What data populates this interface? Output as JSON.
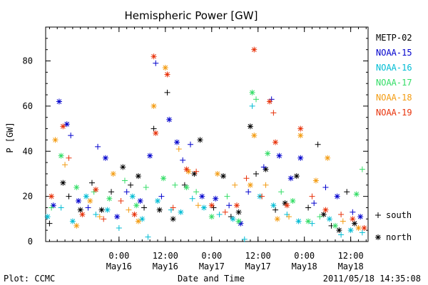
{
  "chart_data": {
    "type": "scatter",
    "title": "Hemispheric Power [GW]",
    "xlabel": "Date and Time",
    "ylabel": "P [GW]",
    "ylim": [
      0,
      95
    ],
    "yticks": [
      0,
      20,
      40,
      60,
      80
    ],
    "xlim": [
      "2011-05-15T05:00",
      "2011-05-18T16:30"
    ],
    "xticks": [
      {
        "t": "2011-05-16T00:00",
        "time": "0:00",
        "date": "May16"
      },
      {
        "t": "2011-05-16T12:00",
        "time": "12:00",
        "date": "May16"
      },
      {
        "t": "2011-05-17T00:00",
        "time": "0:00",
        "date": "May17"
      },
      {
        "t": "2011-05-17T12:00",
        "time": "12:00",
        "date": "May17"
      },
      {
        "t": "2011-05-18T00:00",
        "time": "0:00",
        "date": "May18"
      },
      {
        "t": "2011-05-18T12:00",
        "time": "12:00",
        "date": "May18"
      }
    ],
    "legend_placement": "right",
    "symbols": [
      {
        "symbol": "+",
        "label": "south"
      },
      {
        "symbol": "*",
        "label": "north"
      }
    ],
    "series": [
      {
        "name": "METP-02",
        "color": "#000000",
        "points": [
          [
            "2011-05-15T06:00",
            8,
            "+"
          ],
          [
            "2011-05-15T09:30",
            26,
            "*"
          ],
          [
            "2011-05-15T11:00",
            20,
            "+"
          ],
          [
            "2011-05-15T14:00",
            14,
            "*"
          ],
          [
            "2011-05-15T17:00",
            26,
            "+"
          ],
          [
            "2011-05-15T19:30",
            14,
            "*"
          ],
          [
            "2011-05-15T22:00",
            22,
            "+"
          ],
          [
            "2011-05-16T01:00",
            33,
            "*"
          ],
          [
            "2011-05-16T03:00",
            25,
            "+"
          ],
          [
            "2011-05-16T05:00",
            29,
            "*"
          ],
          [
            "2011-05-16T06:30",
            15,
            "+"
          ],
          [
            "2011-05-16T09:00",
            50,
            "+"
          ],
          [
            "2011-05-16T10:30",
            14,
            "*"
          ],
          [
            "2011-05-16T12:30",
            66,
            "+"
          ],
          [
            "2011-05-16T14:00",
            10,
            "*"
          ],
          [
            "2011-05-16T17:00",
            25,
            "+"
          ],
          [
            "2011-05-16T19:30",
            30,
            "*"
          ],
          [
            "2011-05-16T21:00",
            45,
            "*"
          ],
          [
            "2011-05-17T00:30",
            15,
            "+"
          ],
          [
            "2011-05-17T03:00",
            29,
            "*"
          ],
          [
            "2011-05-17T05:00",
            11,
            "+"
          ],
          [
            "2011-05-17T07:00",
            13,
            "*"
          ],
          [
            "2011-05-17T10:00",
            51,
            "*"
          ],
          [
            "2011-05-17T11:30",
            30,
            "+"
          ],
          [
            "2011-05-17T14:00",
            32,
            "*"
          ],
          [
            "2011-05-17T16:30",
            14,
            "+"
          ],
          [
            "2011-05-17T19:00",
            17,
            "*"
          ],
          [
            "2011-05-17T22:00",
            29,
            "*"
          ],
          [
            "2011-05-18T01:00",
            15,
            "+"
          ],
          [
            "2011-05-18T03:30",
            43,
            "+"
          ],
          [
            "2011-05-18T05:00",
            12,
            "*"
          ],
          [
            "2011-05-18T07:00",
            7,
            "+"
          ],
          [
            "2011-05-18T09:00",
            5,
            "*"
          ],
          [
            "2011-05-18T11:00",
            22,
            "+"
          ],
          [
            "2011-05-18T13:00",
            8,
            "*"
          ]
        ]
      },
      {
        "name": "NOAA-15",
        "color": "#0000cd",
        "points": [
          [
            "2011-05-15T07:00",
            16,
            "*"
          ],
          [
            "2011-05-15T08:30",
            62,
            "*"
          ],
          [
            "2011-05-15T10:30",
            52,
            "*"
          ],
          [
            "2011-05-15T11:30",
            47,
            "+"
          ],
          [
            "2011-05-15T13:30",
            18,
            "*"
          ],
          [
            "2011-05-15T16:00",
            15,
            "+"
          ],
          [
            "2011-05-15T18:30",
            42,
            "+"
          ],
          [
            "2011-05-15T20:30",
            37,
            "*"
          ],
          [
            "2011-05-15T23:30",
            11,
            "*"
          ],
          [
            "2011-05-16T02:00",
            22,
            "+"
          ],
          [
            "2011-05-16T05:30",
            18,
            "*"
          ],
          [
            "2011-05-16T08:00",
            38,
            "*"
          ],
          [
            "2011-05-16T09:30",
            79,
            "+"
          ],
          [
            "2011-05-16T11:00",
            20,
            "+"
          ],
          [
            "2011-05-16T13:00",
            54,
            "*"
          ],
          [
            "2011-05-16T15:00",
            44,
            "*"
          ],
          [
            "2011-05-16T16:30",
            36,
            "+"
          ],
          [
            "2011-05-16T18:30",
            43,
            "+"
          ],
          [
            "2011-05-16T21:30",
            20,
            "*"
          ],
          [
            "2011-05-17T01:00",
            19,
            "*"
          ],
          [
            "2011-05-17T04:30",
            16,
            "+"
          ],
          [
            "2011-05-17T07:30",
            8,
            "*"
          ],
          [
            "2011-05-17T09:30",
            22,
            "+"
          ],
          [
            "2011-05-17T13:30",
            33,
            "+"
          ],
          [
            "2011-05-17T15:30",
            63,
            "+"
          ],
          [
            "2011-05-17T17:30",
            38,
            "*"
          ],
          [
            "2011-05-17T20:30",
            28,
            "*"
          ],
          [
            "2011-05-17T23:00",
            37,
            "*"
          ],
          [
            "2011-05-18T02:30",
            17,
            "+"
          ],
          [
            "2011-05-18T05:30",
            24,
            "+"
          ],
          [
            "2011-05-18T08:30",
            20,
            "*"
          ],
          [
            "2011-05-18T12:30",
            13,
            "+"
          ],
          [
            "2011-05-18T14:30",
            11,
            "*"
          ]
        ]
      },
      {
        "name": "NOAA-16",
        "color": "#00bcd4",
        "points": [
          [
            "2011-05-15T05:30",
            11,
            "*"
          ],
          [
            "2011-05-15T09:00",
            15,
            "+"
          ],
          [
            "2011-05-15T12:00",
            9,
            "*"
          ],
          [
            "2011-05-15T15:30",
            20,
            "*"
          ],
          [
            "2011-05-15T18:00",
            12,
            "+"
          ],
          [
            "2011-05-15T21:00",
            14,
            "*"
          ],
          [
            "2011-05-16T00:00",
            6,
            "+"
          ],
          [
            "2011-05-16T03:30",
            20,
            "*"
          ],
          [
            "2011-05-16T06:00",
            10,
            "*"
          ],
          [
            "2011-05-16T07:30",
            2,
            "+"
          ],
          [
            "2011-05-16T10:00",
            18,
            "*"
          ],
          [
            "2011-05-16T13:30",
            14,
            "+"
          ],
          [
            "2011-05-16T16:00",
            13,
            "*"
          ],
          [
            "2011-05-16T19:00",
            19,
            "+"
          ],
          [
            "2011-05-16T22:00",
            15,
            "*"
          ],
          [
            "2011-05-17T02:00",
            12,
            "+"
          ],
          [
            "2011-05-17T05:30",
            10,
            "*"
          ],
          [
            "2011-05-17T08:30",
            1,
            "+"
          ],
          [
            "2011-05-17T10:30",
            60,
            "+"
          ],
          [
            "2011-05-17T12:30",
            20,
            "*"
          ],
          [
            "2011-05-17T16:00",
            16,
            "*"
          ],
          [
            "2011-05-17T19:30",
            12,
            "+"
          ],
          [
            "2011-05-17T22:30",
            9,
            "*"
          ],
          [
            "2011-05-18T02:00",
            8,
            "+"
          ],
          [
            "2011-05-18T06:30",
            10,
            "*"
          ],
          [
            "2011-05-18T09:30",
            3,
            "+"
          ],
          [
            "2011-05-18T12:00",
            5,
            "*"
          ],
          [
            "2011-05-18T15:00",
            4,
            "+"
          ]
        ]
      },
      {
        "name": "NOAA-17",
        "color": "#33dd66",
        "points": [
          [
            "2011-05-15T06:30",
            15,
            "+"
          ],
          [
            "2011-05-15T09:00",
            38,
            "*"
          ],
          [
            "2011-05-15T13:00",
            24,
            "*"
          ],
          [
            "2011-05-15T17:30",
            22,
            "+"
          ],
          [
            "2011-05-15T21:30",
            19,
            "*"
          ],
          [
            "2011-05-16T01:30",
            27,
            "+"
          ],
          [
            "2011-05-16T04:30",
            16,
            "*"
          ],
          [
            "2011-05-16T07:00",
            24,
            "+"
          ],
          [
            "2011-05-16T11:30",
            28,
            "*"
          ],
          [
            "2011-05-16T14:30",
            25,
            "+"
          ],
          [
            "2011-05-16T17:30",
            24,
            "*"
          ],
          [
            "2011-05-16T20:00",
            22,
            "+"
          ],
          [
            "2011-05-17T00:00",
            11,
            "*"
          ],
          [
            "2011-05-17T04:00",
            20,
            "+"
          ],
          [
            "2011-05-17T07:00",
            9,
            "*"
          ],
          [
            "2011-05-17T10:30",
            66,
            "*"
          ],
          [
            "2011-05-17T11:30",
            63,
            "+"
          ],
          [
            "2011-05-17T14:30",
            39,
            "*"
          ],
          [
            "2011-05-17T18:00",
            22,
            "+"
          ],
          [
            "2011-05-17T21:00",
            18,
            "*"
          ],
          [
            "2011-05-18T01:00",
            9,
            "*"
          ],
          [
            "2011-05-18T04:00",
            11,
            "+"
          ],
          [
            "2011-05-18T08:00",
            7,
            "*"
          ],
          [
            "2011-05-18T13:30",
            21,
            "*"
          ],
          [
            "2011-05-18T15:00",
            32,
            "+"
          ]
        ]
      },
      {
        "name": "NOAA-18",
        "color": "#f39c12",
        "points": [
          [
            "2011-05-15T07:30",
            45,
            "*"
          ],
          [
            "2011-05-15T10:00",
            34,
            "+"
          ],
          [
            "2011-05-15T13:00",
            7,
            "*"
          ],
          [
            "2011-05-15T16:30",
            18,
            "*"
          ],
          [
            "2011-05-15T19:00",
            11,
            "+"
          ],
          [
            "2011-05-15T22:30",
            30,
            "*"
          ],
          [
            "2011-05-16T02:30",
            14,
            "+"
          ],
          [
            "2011-05-16T05:00",
            9,
            "*"
          ],
          [
            "2011-05-16T09:00",
            60,
            "*"
          ],
          [
            "2011-05-16T12:00",
            77,
            "*"
          ],
          [
            "2011-05-16T15:30",
            41,
            "+"
          ],
          [
            "2011-05-16T18:00",
            31,
            "*"
          ],
          [
            "2011-05-16T20:30",
            16,
            "+"
          ],
          [
            "2011-05-17T01:30",
            30,
            "*"
          ],
          [
            "2011-05-17T06:00",
            25,
            "+"
          ],
          [
            "2011-05-17T10:00",
            25,
            "*"
          ],
          [
            "2011-05-17T11:00",
            47,
            "*"
          ],
          [
            "2011-05-17T14:00",
            25,
            "+"
          ],
          [
            "2011-05-17T17:00",
            10,
            "*"
          ],
          [
            "2011-05-17T20:00",
            11,
            "+"
          ],
          [
            "2011-05-17T23:00",
            47,
            "*"
          ],
          [
            "2011-05-18T03:00",
            27,
            "*"
          ],
          [
            "2011-05-18T06:00",
            37,
            "*"
          ],
          [
            "2011-05-18T10:00",
            9,
            "+"
          ],
          [
            "2011-05-18T14:00",
            6,
            "*"
          ]
        ]
      },
      {
        "name": "NOAA-19",
        "color": "#e8320a",
        "points": [
          [
            "2011-05-15T06:30",
            20,
            "*"
          ],
          [
            "2011-05-15T09:30",
            51,
            "*"
          ],
          [
            "2011-05-15T11:00",
            37,
            "+"
          ],
          [
            "2011-05-15T14:30",
            12,
            "*"
          ],
          [
            "2011-05-15T18:00",
            23,
            "*"
          ],
          [
            "2011-05-15T20:00",
            10,
            "+"
          ],
          [
            "2011-05-16T00:30",
            18,
            "+"
          ],
          [
            "2011-05-16T04:00",
            12,
            "*"
          ],
          [
            "2011-05-16T09:00",
            82,
            "*"
          ],
          [
            "2011-05-16T09:30",
            48,
            "*"
          ],
          [
            "2011-05-16T12:30",
            74,
            "*"
          ],
          [
            "2011-05-16T14:00",
            15,
            "+"
          ],
          [
            "2011-05-16T17:30",
            32,
            "*"
          ],
          [
            "2011-05-16T20:00",
            31,
            "+"
          ],
          [
            "2011-05-17T00:00",
            16,
            "*"
          ],
          [
            "2011-05-17T03:30",
            13,
            "+"
          ],
          [
            "2011-05-17T06:30",
            16,
            "*"
          ],
          [
            "2011-05-17T09:00",
            28,
            "+"
          ],
          [
            "2011-05-17T11:00",
            85,
            "*"
          ],
          [
            "2011-05-17T13:00",
            20,
            "+"
          ],
          [
            "2011-05-17T15:00",
            62,
            "*"
          ],
          [
            "2011-05-17T16:00",
            57,
            "+"
          ],
          [
            "2011-05-17T16:30",
            44,
            "*"
          ],
          [
            "2011-05-17T19:30",
            16,
            "*"
          ],
          [
            "2011-05-17T23:00",
            50,
            "*"
          ],
          [
            "2011-05-18T02:00",
            20,
            "+"
          ],
          [
            "2011-05-18T05:30",
            14,
            "*"
          ],
          [
            "2011-05-18T09:30",
            12,
            "+"
          ],
          [
            "2011-05-18T12:30",
            10,
            "*"
          ],
          [
            "2011-05-18T15:30",
            6,
            "*"
          ]
        ]
      }
    ]
  },
  "footer": {
    "plot_credit": "Plot: CCMC",
    "timestamp": "2011/05/18 14:35:08"
  }
}
